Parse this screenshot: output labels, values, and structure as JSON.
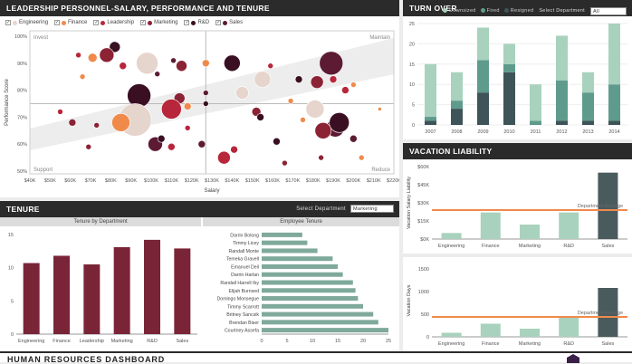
{
  "scatter": {
    "title": "LEADERSHIP PERSONNEL-SALARY, PERFORMANCE AND TENURE",
    "legend": [
      {
        "label": "Engineering",
        "color": "#e6d5cc"
      },
      {
        "label": "Finance",
        "color": "#f08a4b"
      },
      {
        "label": "Leadership",
        "color": "#b8263b"
      },
      {
        "label": "Marketing",
        "color": "#8b2335"
      },
      {
        "label": "R&D",
        "color": "#3a0f22"
      },
      {
        "label": "Sales",
        "color": "#5c1a33"
      }
    ],
    "quadrants": {
      "top_left": "Invest",
      "top_right": "Maintain",
      "bottom_left": "Support",
      "bottom_right": "Reduce"
    },
    "xlabel": "Salary",
    "ylabel": "Performance Score"
  },
  "turnover": {
    "title": "TURN OVER",
    "legend": [
      {
        "label": "Downsized",
        "color": "#a8d2bd"
      },
      {
        "label": "Fired",
        "color": "#5f9b8c"
      },
      {
        "label": "Resigned",
        "color": "#3f5458"
      }
    ],
    "select_label": "Select Department",
    "select_value": "All"
  },
  "vacation": {
    "title": "VACATION LIABILITY",
    "avg_label": "Department Average",
    "top_ylabel": "Vacation Salary Liability",
    "bottom_ylabel": "Vacation Days"
  },
  "tenure": {
    "title": "TENURE",
    "select_label": "Select Department",
    "select_value": "Marketing",
    "left_subtitle": "Tenure by Department",
    "right_subtitle": "Employee Tenure"
  },
  "footer": {
    "title": "HUMAN RESOURCES DASHBOARD"
  },
  "chart_data": [
    {
      "type": "scatter",
      "title": "LEADERSHIP PERSONNEL-SALARY, PERFORMANCE AND TENURE",
      "xlabel": "Salary",
      "ylabel": "Performance Score",
      "xlim": [
        40,
        220
      ],
      "ylim": [
        49,
        102
      ],
      "xticks": [
        40,
        50,
        60,
        70,
        80,
        90,
        100,
        110,
        120,
        130,
        140,
        150,
        160,
        170,
        180,
        190,
        200,
        210,
        220
      ],
      "xtick_labels": [
        "$40K",
        "$50K",
        "$60K",
        "$70K",
        "$80K",
        "$90K",
        "$100K",
        "$110K",
        "$120K",
        "$130K",
        "$140K",
        "$150K",
        "$160K",
        "$170K",
        "$180K",
        "$190K",
        "$200K",
        "$210K",
        "$220K"
      ],
      "yticks": [
        50,
        60,
        70,
        80,
        90,
        100
      ],
      "ytick_labels": [
        "50%",
        "60%",
        "70%",
        "80%",
        "90%",
        "100%"
      ],
      "points": [
        {
          "x": 82,
          "y": 96,
          "r": 6,
          "dept": "R&D"
        },
        {
          "x": 78,
          "y": 93,
          "r": 8,
          "dept": "Marketing"
        },
        {
          "x": 64,
          "y": 93,
          "r": 3,
          "dept": "Leadership"
        },
        {
          "x": 71,
          "y": 92,
          "r": 5,
          "dept": "Finance"
        },
        {
          "x": 86,
          "y": 89,
          "r": 4,
          "dept": "Leadership"
        },
        {
          "x": 98,
          "y": 90,
          "r": 12,
          "dept": "Engineering"
        },
        {
          "x": 111,
          "y": 91,
          "r": 3,
          "dept": "Sales"
        },
        {
          "x": 127,
          "y": 90,
          "r": 4,
          "dept": "Finance"
        },
        {
          "x": 140,
          "y": 90,
          "r": 9,
          "dept": "R&D"
        },
        {
          "x": 115,
          "y": 89,
          "r": 6,
          "dept": "Marketing"
        },
        {
          "x": 103,
          "y": 86,
          "r": 3,
          "dept": "Sales"
        },
        {
          "x": 66,
          "y": 85,
          "r": 3,
          "dept": "Finance"
        },
        {
          "x": 189,
          "y": 90,
          "r": 13,
          "dept": "Sales"
        },
        {
          "x": 159,
          "y": 89,
          "r": 3,
          "dept": "Leadership"
        },
        {
          "x": 155,
          "y": 84,
          "r": 9,
          "dept": "Engineering"
        },
        {
          "x": 173,
          "y": 84,
          "r": 4,
          "dept": "R&D"
        },
        {
          "x": 182,
          "y": 83,
          "r": 7,
          "dept": "Marketing"
        },
        {
          "x": 190,
          "y": 84,
          "r": 4,
          "dept": "Leadership"
        },
        {
          "x": 200,
          "y": 82,
          "r": 3,
          "dept": "Finance"
        },
        {
          "x": 94,
          "y": 78,
          "r": 13,
          "dept": "R&D"
        },
        {
          "x": 114,
          "y": 77,
          "r": 6,
          "dept": "Marketing"
        },
        {
          "x": 118,
          "y": 74,
          "r": 4,
          "dept": "Finance"
        },
        {
          "x": 110,
          "y": 73,
          "r": 11,
          "dept": "Leadership"
        },
        {
          "x": 127,
          "y": 79,
          "r": 3,
          "dept": "Sales"
        },
        {
          "x": 145,
          "y": 79,
          "r": 7,
          "dept": "Engineering"
        },
        {
          "x": 127,
          "y": 75,
          "r": 3,
          "dept": "R&D"
        },
        {
          "x": 152,
          "y": 72,
          "r": 5,
          "dept": "Marketing"
        },
        {
          "x": 169,
          "y": 76,
          "r": 3,
          "dept": "Finance"
        },
        {
          "x": 181,
          "y": 73,
          "r": 10,
          "dept": "Engineering"
        },
        {
          "x": 196,
          "y": 80,
          "r": 4,
          "dept": "Leadership"
        },
        {
          "x": 213,
          "y": 73,
          "r": 2,
          "dept": "Finance"
        },
        {
          "x": 92,
          "y": 69,
          "r": 18,
          "dept": "Engineering"
        },
        {
          "x": 85,
          "y": 68,
          "r": 10,
          "dept": "Finance"
        },
        {
          "x": 55,
          "y": 72,
          "r": 3,
          "dept": "Leadership"
        },
        {
          "x": 61,
          "y": 68,
          "r": 4,
          "dept": "Marketing"
        },
        {
          "x": 73,
          "y": 67,
          "r": 3,
          "dept": "Marketing"
        },
        {
          "x": 118,
          "y": 66,
          "r": 3,
          "dept": "Leadership"
        },
        {
          "x": 154,
          "y": 70,
          "r": 4,
          "dept": "R&D"
        },
        {
          "x": 175,
          "y": 69,
          "r": 3,
          "dept": "Finance"
        },
        {
          "x": 191,
          "y": 66,
          "r": 10,
          "dept": "Sales"
        },
        {
          "x": 193,
          "y": 68,
          "r": 11,
          "dept": "R&D"
        },
        {
          "x": 185,
          "y": 65,
          "r": 9,
          "dept": "Marketing"
        },
        {
          "x": 200,
          "y": 62,
          "r": 4,
          "dept": "Sales"
        },
        {
          "x": 102,
          "y": 60,
          "r": 8,
          "dept": "Sales"
        },
        {
          "x": 105,
          "y": 62,
          "r": 4,
          "dept": "R&D"
        },
        {
          "x": 110,
          "y": 59,
          "r": 4,
          "dept": "Leadership"
        },
        {
          "x": 125,
          "y": 60,
          "r": 4,
          "dept": "Sales"
        },
        {
          "x": 162,
          "y": 61,
          "r": 4,
          "dept": "R&D"
        },
        {
          "x": 141,
          "y": 58,
          "r": 4,
          "dept": "Leadership"
        },
        {
          "x": 136,
          "y": 55,
          "r": 7,
          "dept": "Leadership"
        },
        {
          "x": 166,
          "y": 53,
          "r": 3,
          "dept": "Marketing"
        },
        {
          "x": 69,
          "y": 59,
          "r": 3,
          "dept": "Marketing"
        },
        {
          "x": 184,
          "y": 55,
          "r": 3,
          "dept": "Marketing"
        },
        {
          "x": 204,
          "y": 55,
          "r": 3,
          "dept": "Finance"
        }
      ]
    },
    {
      "type": "bar",
      "title": "TURN OVER",
      "stacked": true,
      "categories": [
        "2007",
        "2008",
        "2009",
        "2010",
        "2011",
        "2012",
        "2013",
        "2014"
      ],
      "series": [
        {
          "name": "Resigned",
          "values": [
            1,
            4,
            8,
            13,
            0,
            1,
            1,
            1
          ]
        },
        {
          "name": "Fired",
          "values": [
            1,
            2,
            8,
            2,
            1,
            10,
            7,
            9
          ]
        },
        {
          "name": "Downsized",
          "values": [
            13,
            7,
            8,
            5,
            9,
            11,
            5,
            15
          ]
        }
      ],
      "ylim": [
        0,
        25
      ],
      "yticks": [
        0,
        5,
        10,
        15,
        20,
        25
      ]
    },
    {
      "type": "bar",
      "title": "VACATION LIABILITY",
      "categories": [
        "Engineering",
        "Finance",
        "Marketing",
        "R&D",
        "Sales"
      ],
      "values": [
        5,
        22,
        12,
        22,
        55
      ],
      "ylim": [
        0,
        60
      ],
      "yticks": [
        0,
        15,
        30,
        45,
        60
      ],
      "ytick_labels": [
        "$0K",
        "$15K",
        "$30K",
        "$45K",
        "$60K"
      ],
      "average": 24,
      "ylabel": "Vacation Salary Liability"
    },
    {
      "type": "bar",
      "title": "VACATION DAYS",
      "categories": [
        "Engineering",
        "Finance",
        "Marketing",
        "R&D",
        "Sales"
      ],
      "values": [
        90,
        290,
        180,
        420,
        1080
      ],
      "ylim": [
        0,
        1600
      ],
      "yticks": [
        0,
        500,
        1000,
        1500
      ],
      "average": 440,
      "ylabel": "Vacation Days"
    },
    {
      "type": "bar",
      "title": "Tenure by Department",
      "categories": [
        "Engineering",
        "Finance",
        "Leadership",
        "Marketing",
        "R&D",
        "Sales"
      ],
      "values": [
        10.7,
        11.8,
        10.5,
        13.1,
        14.2,
        12.9
      ],
      "ylim": [
        0,
        15
      ],
      "yticks": [
        0,
        5,
        10,
        15
      ]
    },
    {
      "type": "bar",
      "orientation": "horizontal",
      "title": "Employee Tenure",
      "categories": [
        "Darrin Bolong",
        "Timmy Licey",
        "Randall Monte",
        "Temeka Gravell",
        "Emanuel Deil",
        "Darrin Harlan",
        "Randall Harrell Iby",
        "Elijah Burnsed",
        "Domingo Monsegue",
        "Timmy Scarrott",
        "Britney Sancsik",
        "Brendan Biser",
        "Courtney Assefa"
      ],
      "values": [
        8,
        9,
        11,
        14,
        15,
        16,
        18,
        18.5,
        19,
        20,
        22,
        23,
        25
      ],
      "xlim": [
        0,
        25
      ],
      "xticks": [
        0,
        5,
        10,
        15,
        20,
        25
      ]
    }
  ]
}
